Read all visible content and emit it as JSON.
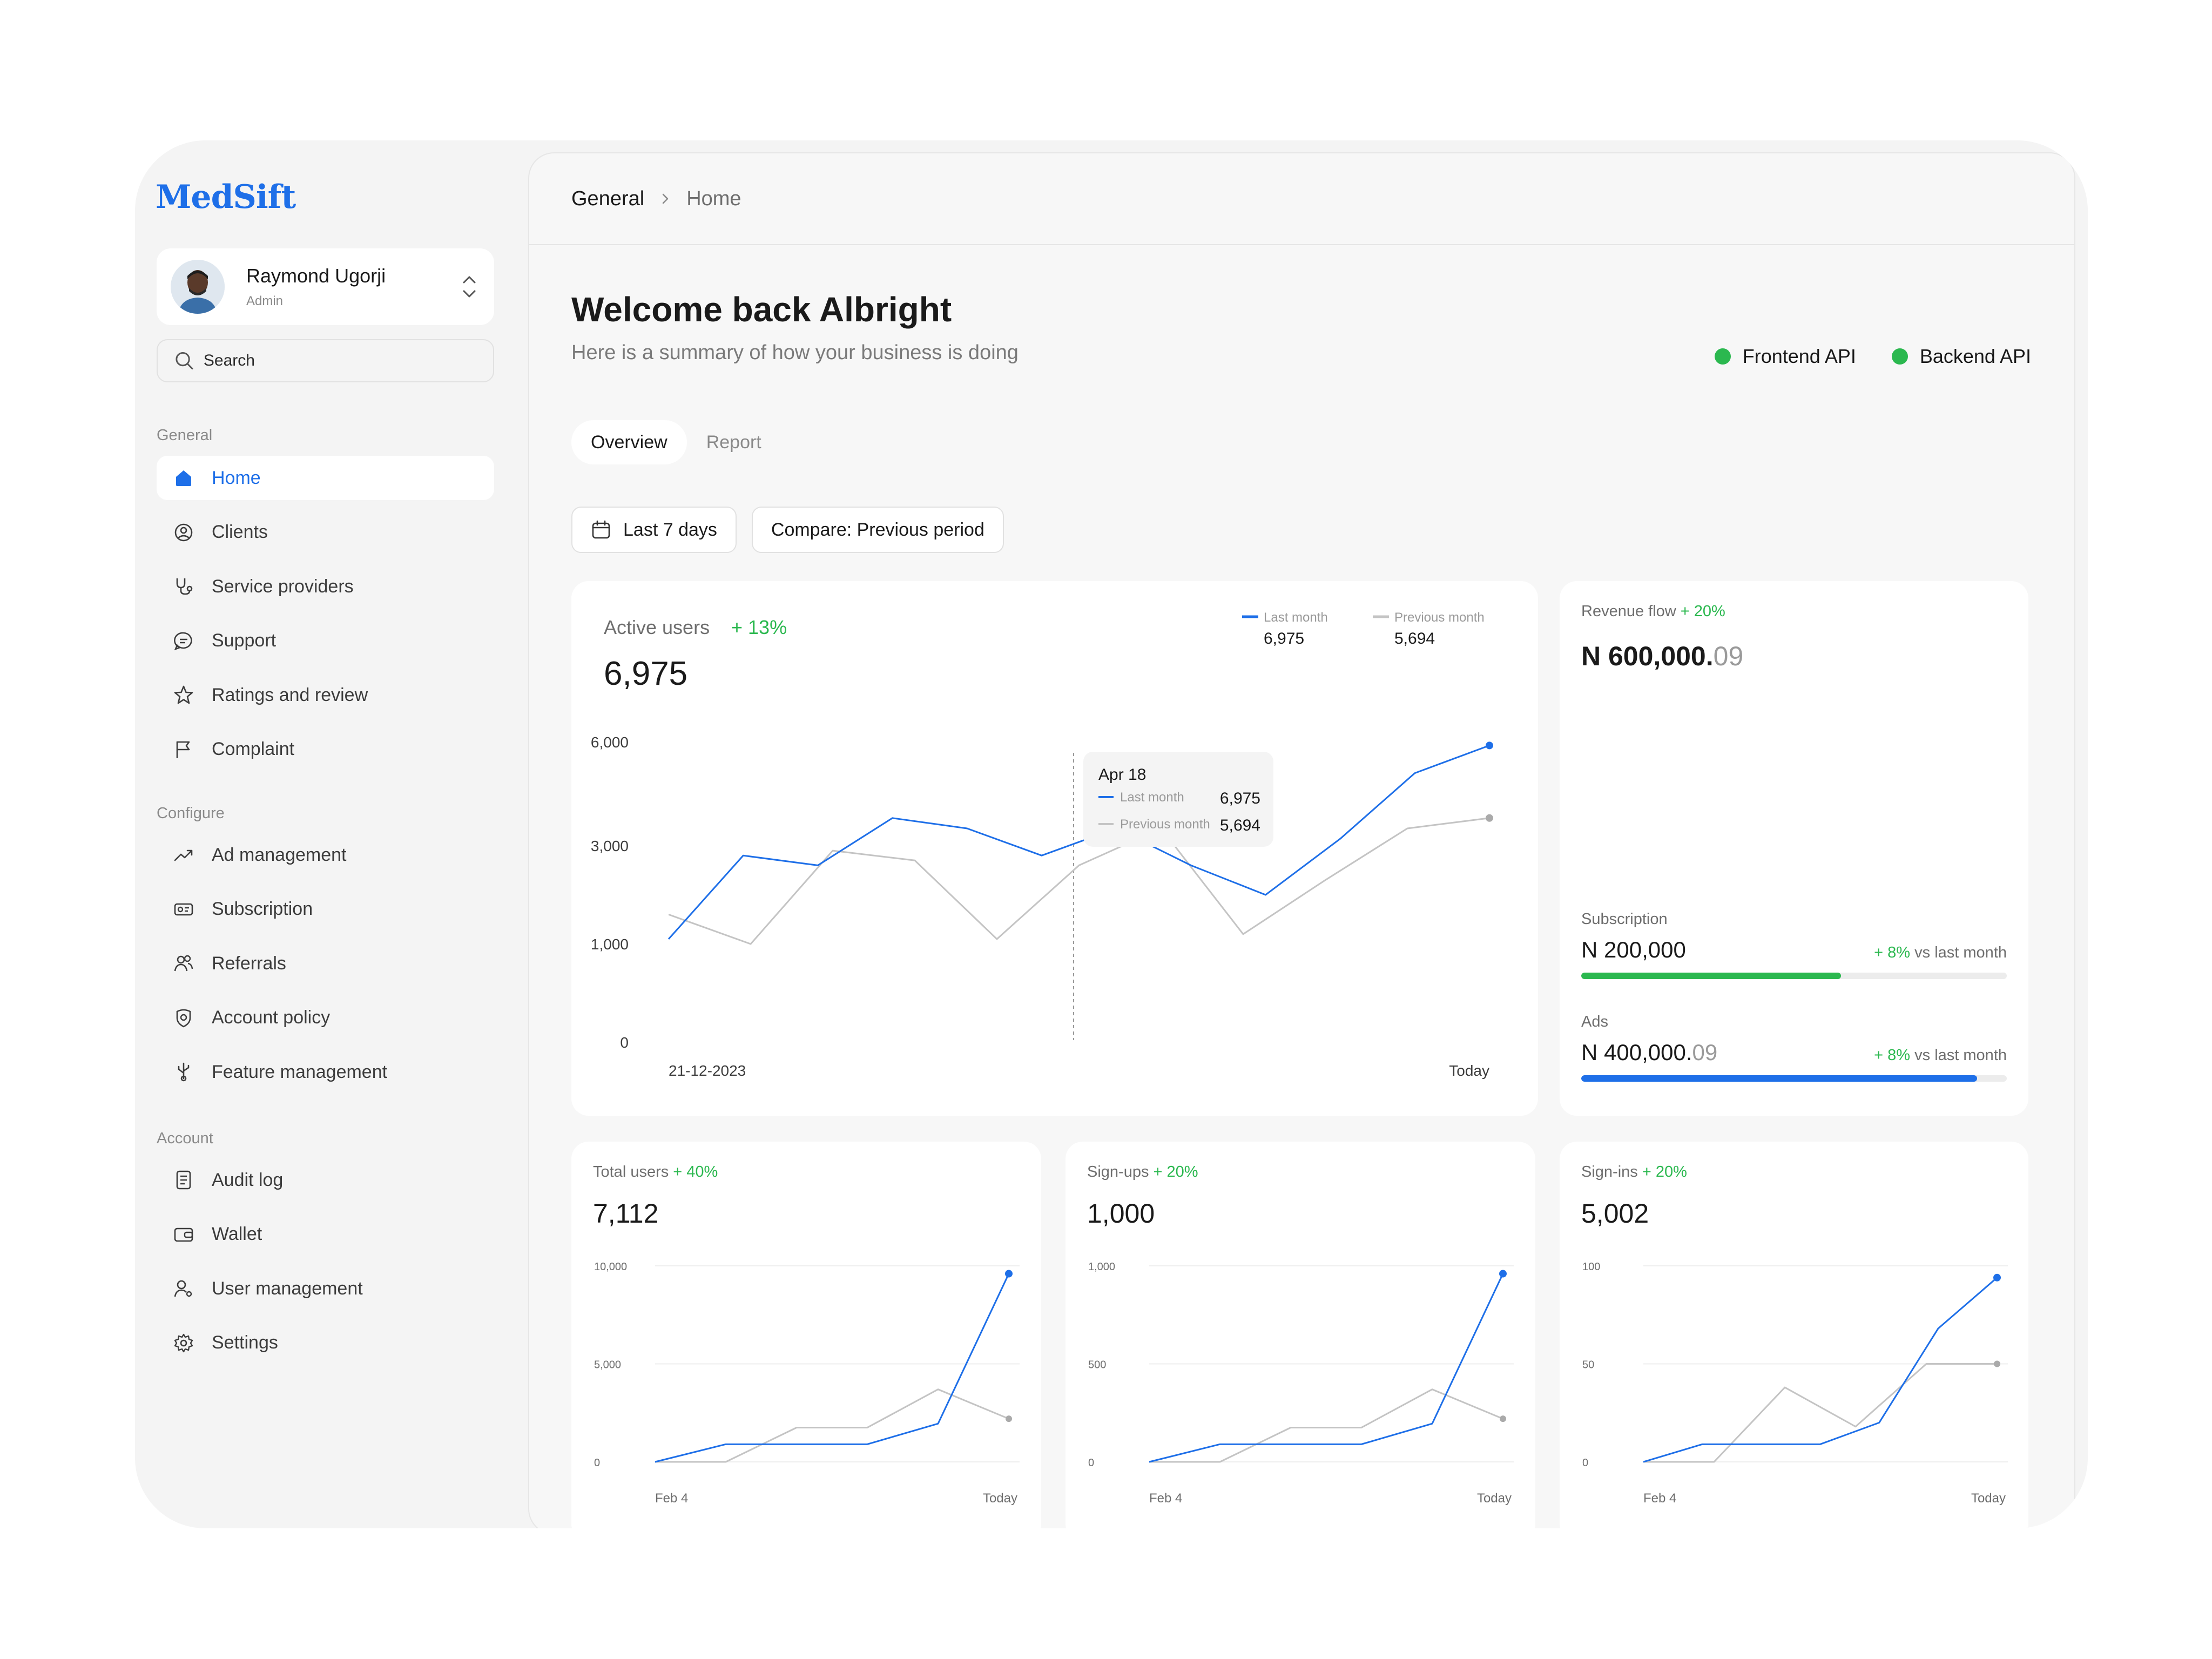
{
  "app": {
    "logo": "MedSift"
  },
  "profile": {
    "name": "Raymond Ugorji",
    "role": "Admin"
  },
  "search": {
    "placeholder": "Search"
  },
  "sidebar": {
    "sections": [
      {
        "label": "General",
        "items": [
          {
            "label": "Home",
            "icon": "home-icon",
            "active": true
          },
          {
            "label": "Clients",
            "icon": "user-circle-icon"
          },
          {
            "label": "Service providers",
            "icon": "stethoscope-icon"
          },
          {
            "label": "Support",
            "icon": "chat-bubble-icon"
          },
          {
            "label": "Ratings and review",
            "icon": "star-icon"
          },
          {
            "label": "Complaint",
            "icon": "flag-icon"
          }
        ]
      },
      {
        "label": "Configure",
        "items": [
          {
            "label": "Ad management",
            "icon": "trending-up-icon"
          },
          {
            "label": "Subscription",
            "icon": "ticket-icon"
          },
          {
            "label": "Referrals",
            "icon": "users-icon"
          },
          {
            "label": "Account policy",
            "icon": "policy-icon"
          },
          {
            "label": "Feature management",
            "icon": "usb-icon"
          }
        ]
      },
      {
        "label": "Account",
        "items": [
          {
            "label": "Audit log",
            "icon": "document-icon"
          },
          {
            "label": "Wallet",
            "icon": "wallet-icon"
          },
          {
            "label": "User management",
            "icon": "user-cog-icon"
          },
          {
            "label": "Settings",
            "icon": "gear-icon"
          }
        ]
      }
    ]
  },
  "breadcrumb": {
    "root": "General",
    "current": "Home"
  },
  "header": {
    "title": "Welcome back Albright",
    "subtitle": "Here is a summary of how your business is doing",
    "api_status": [
      {
        "label": "Frontend API",
        "color": "#2bb84f"
      },
      {
        "label": "Backend API",
        "color": "#2bb84f"
      }
    ]
  },
  "tabs": [
    {
      "label": "Overview",
      "active": true
    },
    {
      "label": "Report",
      "active": false
    }
  ],
  "filters": {
    "date_range": "Last 7 days",
    "compare": "Compare: Previous period"
  },
  "colors": {
    "accent": "#1e6fe8",
    "positive": "#2bb84f",
    "comparison_line": "#c4c4c4"
  },
  "active_users": {
    "label": "Active users",
    "change": "+ 13%",
    "value": "6,975",
    "legend": [
      {
        "name": "Last month",
        "value": "6,975",
        "color": "#1e6fe8"
      },
      {
        "name": "Previous month",
        "value": "5,694",
        "color": "#c4c4c4"
      }
    ],
    "tooltip": {
      "date": "Apr 18",
      "rows": [
        {
          "name": "Last month",
          "value": "6,975"
        },
        {
          "name": "Previous month",
          "value": "5,694"
        }
      ]
    }
  },
  "revenue": {
    "label": "Revenue flow",
    "change": "+ 20%",
    "amount_main": "N 600,000.",
    "amount_decimal": "09",
    "subscription": {
      "label": "Subscription",
      "amount": "N 200,000",
      "change": "+ 8%",
      "suffix": "vs last month",
      "progress": 0.61,
      "color": "#2bb84f"
    },
    "ads": {
      "label": "Ads",
      "amount_main": "N 400,000.",
      "amount_decimal": "09",
      "change": "+ 8%",
      "suffix": "vs last month",
      "progress": 0.93,
      "color": "#1e6fe8"
    }
  },
  "mini_cards": [
    {
      "label": "Total users",
      "change": "+ 40%",
      "value": "7,112"
    },
    {
      "label": "Sign-ups",
      "change": "+ 20%",
      "value": "1,000"
    },
    {
      "label": "Sign-ins",
      "change": "+ 20%",
      "value": "5,002"
    }
  ],
  "chart_data": [
    {
      "type": "line",
      "title": "Active users",
      "y_tick_labels": [
        "0",
        "1,000",
        "3,000",
        "6,000"
      ],
      "x_tick_labels": [
        "21-12-2023",
        "Today"
      ],
      "series": [
        {
          "name": "Last month",
          "color": "#1e6fe8",
          "values": [
            1100,
            2800,
            2600,
            3800,
            3500,
            2800,
            3500,
            2600,
            2000,
            3200,
            5100,
            5900
          ]
        },
        {
          "name": "Previous month",
          "color": "#c4c4c4",
          "values": [
            1600,
            1000,
            2900,
            2700,
            1100,
            2600,
            3500,
            1200,
            2300,
            3500,
            3800
          ]
        }
      ]
    },
    {
      "type": "line",
      "title": "Total users",
      "ylim": [
        0,
        10000
      ],
      "y_tick_labels": [
        "0",
        "5,000",
        "10,000"
      ],
      "x_tick_labels": [
        "Feb 4",
        "Today"
      ],
      "series": [
        {
          "name": "Last month",
          "color": "#1e6fe8",
          "values": [
            0,
            900,
            900,
            900,
            1950,
            9600
          ]
        },
        {
          "name": "Previous month",
          "color": "#c4c4c4",
          "values": [
            0,
            0,
            1750,
            1750,
            3700,
            2200
          ]
        }
      ]
    },
    {
      "type": "line",
      "title": "Sign-ups",
      "ylim": [
        0,
        1000
      ],
      "y_tick_labels": [
        "0",
        "500",
        "1,000"
      ],
      "x_tick_labels": [
        "Feb 4",
        "Today"
      ],
      "series": [
        {
          "name": "Last month",
          "color": "#1e6fe8",
          "values": [
            0,
            90,
            90,
            90,
            195,
            960
          ]
        },
        {
          "name": "Previous month",
          "color": "#c4c4c4",
          "values": [
            0,
            0,
            175,
            175,
            370,
            220
          ]
        }
      ]
    },
    {
      "type": "line",
      "title": "Sign-ins",
      "ylim": [
        0,
        100
      ],
      "y_tick_labels": [
        "0",
        "50",
        "100"
      ],
      "x_tick_labels": [
        "Feb 4",
        "Today"
      ],
      "series": [
        {
          "name": "Last month",
          "color": "#1e6fe8",
          "values": [
            0,
            9,
            9,
            9,
            20,
            68,
            94
          ]
        },
        {
          "name": "Previous month",
          "color": "#c4c4c4",
          "values": [
            0,
            0,
            38,
            18,
            50,
            50
          ]
        }
      ]
    }
  ]
}
